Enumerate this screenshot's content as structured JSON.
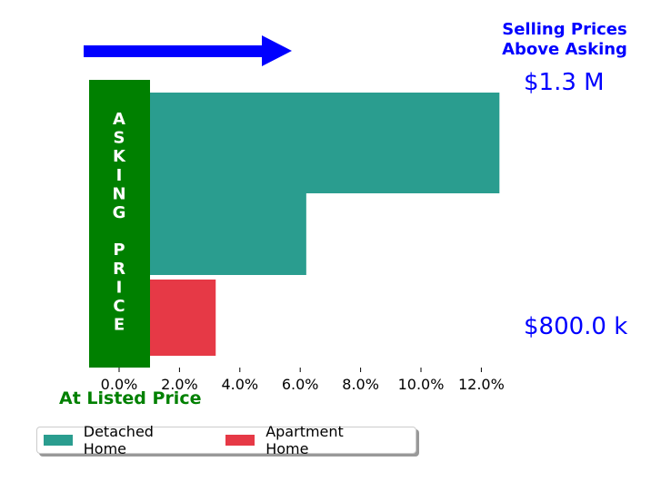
{
  "chart_data": {
    "type": "bar",
    "orientation": "horizontal",
    "categories": [
      "Detached Home (upper)",
      "Detached Home (lower)",
      "Apartment Home"
    ],
    "series": [
      {
        "name": "Detached Home",
        "values": [
          12.6,
          6.2,
          null
        ],
        "color": "#2a9d8f"
      },
      {
        "name": "Apartment Home",
        "values": [
          null,
          null,
          3.2
        ],
        "color": "#e63946"
      }
    ],
    "x_ticks": [
      "0.0%",
      "2.0%",
      "4.0%",
      "6.0%",
      "8.0%",
      "10.0%",
      "12.0%"
    ],
    "xlim": [
      -1.0,
      12.6
    ],
    "grid": false,
    "legend_placement": "bottom-left"
  },
  "annotations": {
    "top_title": "Selling Prices\nAbove Asking",
    "high_price": "$1.3 M",
    "low_price": "$800.0 k",
    "bottom_label": "At Listed Price",
    "vertical_label": [
      "A",
      "S",
      "K",
      "I",
      "N",
      "G",
      "",
      "P",
      "R",
      "I",
      "C",
      "E"
    ]
  },
  "colors": {
    "asking_box": "#008000",
    "arrow": "#0000ff",
    "blue_text": "#0000ff",
    "green_text": "#008000"
  },
  "icons": {
    "arrow": "right-arrow-icon"
  }
}
